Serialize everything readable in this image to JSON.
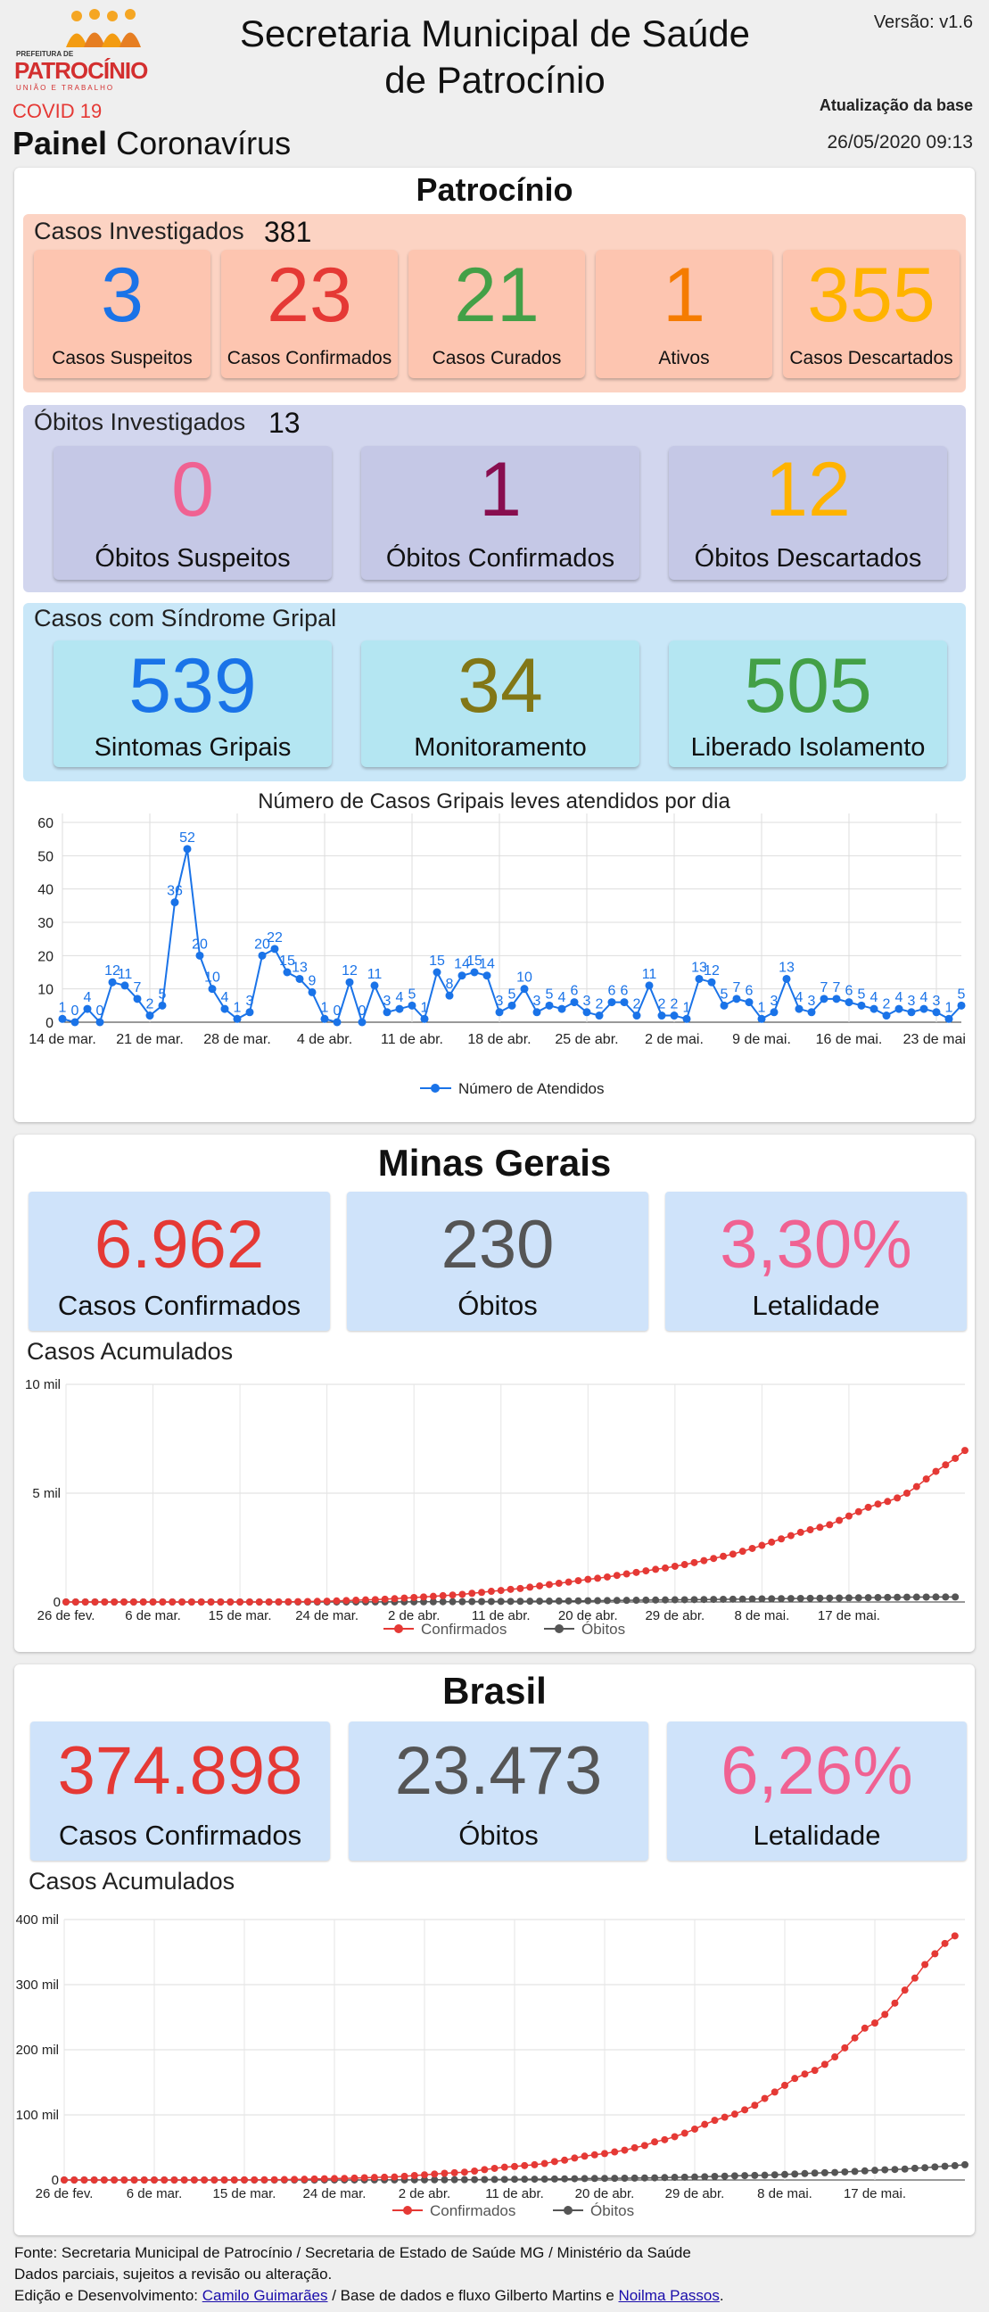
{
  "header": {
    "logo_small": "PREFEITURA DE",
    "logo_name": "PATROCÍNIO",
    "logo_sub": "UNIÃO E TRABALHO",
    "covid_label": "COVID 19",
    "painel_bold": "Painel",
    "painel_rest": " Coronavírus",
    "title_line1": "Secretaria Municipal de Saúde",
    "title_line2": "de Patrocínio",
    "version": "Versão: v1.6",
    "update_label": "Atualização da base",
    "update_date": "26/05/2020 09:13"
  },
  "patrocinio": {
    "title": "Patrocínio",
    "investigados": {
      "label": "Casos Investigados",
      "count": "381",
      "cards": [
        {
          "value": "3",
          "label": "Casos Suspeitos",
          "color": "#1a73e8"
        },
        {
          "value": "23",
          "label": "Casos Confirmados",
          "color": "#e53935"
        },
        {
          "value": "21",
          "label": "Casos Curados",
          "color": "#43a047"
        },
        {
          "value": "1",
          "label": "Ativos",
          "color": "#f57c00"
        },
        {
          "value": "355",
          "label": "Casos Descartados",
          "color": "#ffb300"
        }
      ]
    },
    "obitos": {
      "label": "Óbitos Investigados",
      "count": "13",
      "cards": [
        {
          "value": "0",
          "label": "Óbitos Suspeitos",
          "color": "#f06292"
        },
        {
          "value": "1",
          "label": "Óbitos Confirmados",
          "color": "#880e4f"
        },
        {
          "value": "12",
          "label": "Óbitos Descartados",
          "color": "#ffb300"
        }
      ]
    },
    "sindrome": {
      "label": "Casos com Síndrome Gripal",
      "cards": [
        {
          "value": "539",
          "label": "Sintomas Gripais",
          "color": "#1a73e8"
        },
        {
          "value": "34",
          "label": "Monitoramento",
          "color": "#827717"
        },
        {
          "value": "505",
          "label": "Liberado Isolamento",
          "color": "#43a047"
        }
      ]
    }
  },
  "minas": {
    "title": "Minas Gerais",
    "cards": [
      {
        "value": "6.962",
        "label": "Casos Confirmados",
        "color": "#e53935"
      },
      {
        "value": "230",
        "label": "Óbitos",
        "color": "#555555"
      },
      {
        "value": "3,30%",
        "label": "Letalidade",
        "color": "#f06292"
      }
    ],
    "chart_title": "Casos Acumulados"
  },
  "brasil": {
    "title": "Brasil",
    "cards": [
      {
        "value": "374.898",
        "label": "Casos Confirmados",
        "color": "#e53935"
      },
      {
        "value": "23.473",
        "label": "Óbitos",
        "color": "#555555"
      },
      {
        "value": "6,26%",
        "label": "Letalidade",
        "color": "#f06292"
      }
    ],
    "chart_title": "Casos Acumulados"
  },
  "footer": {
    "line1": "Fonte: Secretaria Municipal de Patrocínio / Secretaria de Estado de Saúde MG / Ministério da Saúde",
    "line2": "Dados parciais, sujeitos a revisão ou alteração.",
    "line3_prefix": "Edição e Desenvolvimento: ",
    "author1": "Camilo Guimarães",
    "line3_mid": " / Base de dados e fluxo Gilberto Martins e ",
    "author2": "Noilma Passos",
    "line3_end": "."
  },
  "chart_data": [
    {
      "type": "line",
      "title": "Número de Casos Gripais leves atendidos por dia",
      "x": [
        "14/03",
        "15/03",
        "16/03",
        "17/03",
        "18/03",
        "19/03",
        "20/03",
        "21/03",
        "22/03",
        "23/03",
        "24/03",
        "25/03",
        "26/03",
        "27/03",
        "28/03",
        "29/03",
        "30/03",
        "31/03",
        "01/04",
        "02/04",
        "03/04",
        "04/04",
        "05/04",
        "06/04",
        "07/04",
        "08/04",
        "09/04",
        "10/04",
        "11/04",
        "12/04",
        "13/04",
        "14/04",
        "15/04",
        "16/04",
        "17/04",
        "18/04",
        "19/04",
        "20/04",
        "21/04",
        "22/04",
        "23/04",
        "24/04",
        "25/04",
        "26/04",
        "27/04",
        "28/04",
        "29/04",
        "30/04",
        "01/05",
        "02/05",
        "03/05",
        "04/05",
        "05/05",
        "06/05",
        "07/05",
        "08/05",
        "09/05",
        "10/05",
        "11/05",
        "12/05",
        "13/05",
        "14/05",
        "15/05",
        "16/05",
        "17/05",
        "18/05",
        "19/05",
        "20/05",
        "21/05",
        "22/05",
        "23/05",
        "24/05",
        "25/05"
      ],
      "xticks": [
        "14 de mar.",
        "21 de mar.",
        "28 de mar.",
        "4 de abr.",
        "11 de abr.",
        "18 de abr.",
        "25 de abr.",
        "2 de mai.",
        "9 de mai.",
        "16 de mai.",
        "23 de mai."
      ],
      "series": [
        {
          "name": "Número de Atendidos",
          "color": "#1a73e8",
          "values": [
            1,
            0,
            4,
            0,
            12,
            11,
            7,
            2,
            5,
            36,
            52,
            20,
            10,
            4,
            1,
            3,
            20,
            22,
            15,
            13,
            9,
            1,
            0,
            12,
            0,
            11,
            3,
            4,
            5,
            1,
            15,
            8,
            14,
            15,
            14,
            3,
            5,
            10,
            3,
            5,
            4,
            6,
            3,
            2,
            6,
            6,
            2,
            11,
            2,
            2,
            1,
            13,
            12,
            5,
            7,
            6,
            1,
            3,
            13,
            4,
            3,
            7,
            7,
            6,
            5,
            4,
            2,
            4,
            3,
            4,
            3,
            1,
            5
          ]
        }
      ],
      "ylim": [
        0,
        60
      ],
      "yticks": [
        0,
        10,
        20,
        30,
        40,
        50,
        60
      ],
      "legend": "bottom"
    },
    {
      "type": "line",
      "title": "Casos Acumulados",
      "region": "Minas Gerais",
      "xticks": [
        "26 de fev.",
        "6 de mar.",
        "15 de mar.",
        "24 de mar.",
        "2 de abr.",
        "11 de abr.",
        "20 de abr.",
        "29 de abr.",
        "8 de mai.",
        "17 de mai."
      ],
      "series": [
        {
          "name": "Confirmados",
          "color": "#e53935",
          "values": [
            0,
            0,
            0,
            0,
            0,
            0,
            0,
            0,
            0,
            0,
            0,
            0,
            0,
            0,
            0,
            0,
            0,
            0,
            0,
            0,
            0,
            2,
            5,
            10,
            15,
            20,
            29,
            38,
            49,
            65,
            80,
            96,
            108,
            130,
            153,
            180,
            205,
            231,
            260,
            290,
            320,
            350,
            400,
            440,
            490,
            530,
            580,
            620,
            680,
            740,
            800,
            860,
            915,
            980,
            1040,
            1090,
            1150,
            1220,
            1290,
            1360,
            1430,
            1500,
            1560,
            1640,
            1720,
            1810,
            1900,
            2000,
            2100,
            2200,
            2330,
            2460,
            2600,
            2750,
            2900,
            3050,
            3200,
            3320,
            3430,
            3550,
            3750,
            3950,
            4150,
            4350,
            4500,
            4620,
            4780,
            5000,
            5300,
            5650,
            6000,
            6300,
            6600,
            6962
          ]
        },
        {
          "name": "Óbitos",
          "color": "#555555",
          "values": [
            0,
            0,
            0,
            0,
            0,
            0,
            0,
            0,
            0,
            0,
            0,
            0,
            0,
            0,
            0,
            0,
            0,
            0,
            0,
            0,
            0,
            0,
            0,
            0,
            0,
            0,
            0,
            1,
            1,
            2,
            2,
            3,
            3,
            4,
            5,
            6,
            7,
            9,
            10,
            12,
            14,
            16,
            18,
            20,
            22,
            25,
            28,
            31,
            34,
            37,
            40,
            44,
            48,
            52,
            56,
            60,
            65,
            70,
            75,
            80,
            85,
            90,
            95,
            100,
            105,
            110,
            115,
            120,
            125,
            130,
            135,
            140,
            145,
            150,
            155,
            160,
            165,
            170,
            175,
            180,
            185,
            190,
            195,
            200,
            205,
            210,
            215,
            220,
            223,
            226,
            228,
            229,
            230
          ]
        }
      ],
      "ylim": [
        0,
        10000
      ],
      "yticks": [
        "0",
        "5 mil",
        "10 mil"
      ],
      "legend": "bottom"
    },
    {
      "type": "line",
      "title": "Casos Acumulados",
      "region": "Brasil",
      "xticks": [
        "26 de fev.",
        "6 de mar.",
        "15 de mar.",
        "24 de mar.",
        "2 de abr.",
        "11 de abr.",
        "20 de abr.",
        "29 de abr.",
        "8 de mai.",
        "17 de mai."
      ],
      "series": [
        {
          "name": "Confirmados",
          "color": "#e53935",
          "values": [
            1,
            1,
            1,
            1,
            2,
            2,
            2,
            2,
            3,
            8,
            13,
            19,
            25,
            34,
            52,
            77,
            98,
            121,
            176,
            234,
            291,
            428,
            621,
            904,
            1128,
            1546,
            1891,
            2201,
            2433,
            2915,
            3417,
            3904,
            4256,
            4579,
            5717,
            6836,
            7910,
            9056,
            10278,
            11130,
            12056,
            13717,
            15927,
            17857,
            19638,
            20727,
            22169,
            23430,
            25262,
            28320,
            30425,
            33682,
            36599,
            38654,
            40581,
            43079,
            45757,
            49492,
            52995,
            58509,
            61888,
            66501,
            71886,
            78162,
            85380,
            91589,
            96396,
            101147,
            107780,
            114715,
            125218,
            135106,
            145328,
            155939,
            162699,
            168331,
            177589,
            188974,
            202918,
            218223,
            233142,
            241080,
            254220,
            271628,
            291579,
            310087,
            330890,
            347398,
            363211,
            374898
          ]
        },
        {
          "name": "Óbitos",
          "color": "#555555",
          "values": [
            0,
            0,
            0,
            0,
            0,
            0,
            0,
            0,
            0,
            0,
            0,
            0,
            0,
            0,
            0,
            0,
            0,
            0,
            0,
            0,
            0,
            1,
            3,
            6,
            11,
            18,
            25,
            34,
            46,
            57,
            77,
            92,
            111,
            136,
            159,
            201,
            240,
            299,
            359,
            431,
            486,
            553,
            667,
            800,
            941,
            1056,
            1124,
            1223,
            1328,
            1532,
            1736,
            1924,
            2141,
            2354,
            2462,
            2587,
            2741,
            2906,
            3153,
            3313,
            3704,
            4045,
            4271,
            4543,
            5017,
            5466,
            5901,
            6329,
            6750,
            7025,
            7321,
            7921,
            8536,
            9146,
            9897,
            10627,
            11123,
            11519,
            12400,
            13149,
            13993,
            14817,
            15633,
            16118,
            16792,
            17971,
            18859,
            20047,
            21048,
            22013,
            23473
          ]
        }
      ],
      "ylim": [
        0,
        400000
      ],
      "yticks": [
        "0",
        "100 mil",
        "200 mil",
        "300 mil",
        "400 mil"
      ],
      "legend": "bottom"
    }
  ]
}
